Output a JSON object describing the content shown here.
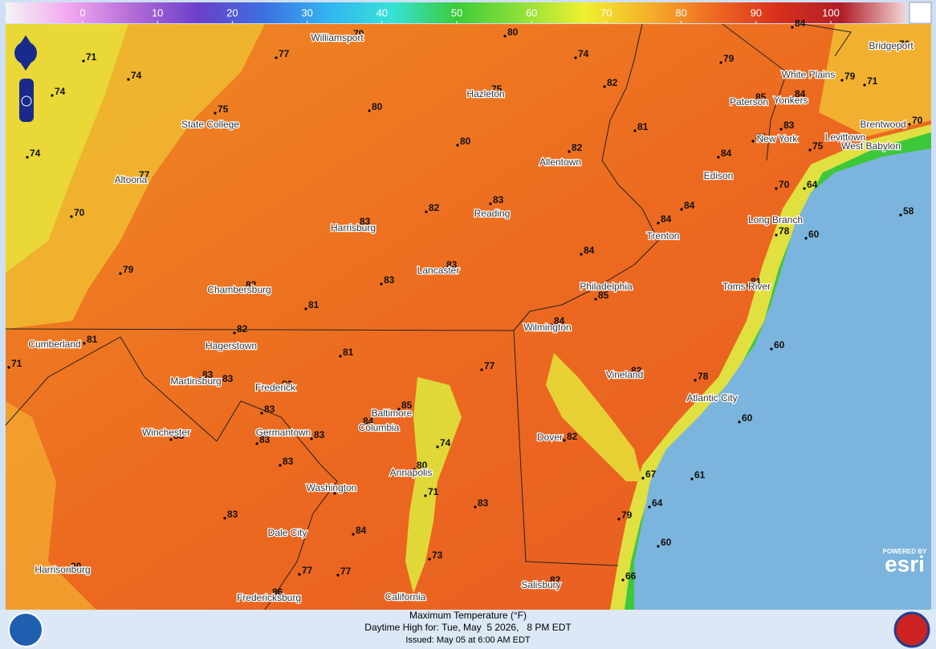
{
  "colorbar": {
    "ticks": [
      0,
      10,
      20,
      30,
      40,
      50,
      60,
      70,
      80,
      90,
      100
    ],
    "colors": [
      "#f4f4f4",
      "#f2a6f0",
      "#b26ad8",
      "#6b3fc9",
      "#3d6fe0",
      "#33b4f0",
      "#36e2d8",
      "#3ccc3a",
      "#8ee03a",
      "#f0f030",
      "#f5b02a",
      "#f06a22",
      "#d8301c",
      "#b01e28",
      "#f2d8d8"
    ]
  },
  "temperatures": [
    79,
    80,
    84,
    76,
    71,
    77,
    74,
    79,
    74,
    82,
    85,
    84,
    79,
    71,
    74,
    75,
    75,
    80,
    81,
    85,
    83,
    70,
    74,
    80,
    82,
    84,
    75,
    77,
    83,
    82,
    84,
    84,
    70,
    64,
    58,
    70,
    83,
    78,
    60,
    79,
    83,
    84,
    82,
    83,
    81,
    81,
    85,
    82,
    84,
    81,
    71,
    81,
    60,
    77,
    83,
    83,
    83,
    82,
    78,
    85,
    83,
    84,
    60,
    83,
    83,
    82,
    74,
    83,
    83,
    80,
    85,
    71,
    67,
    61,
    83,
    64,
    79,
    83,
    84,
    60,
    73,
    80,
    77,
    77,
    66,
    82,
    86
  ],
  "cities": [
    "Williamsport",
    "Hazleton",
    "State College",
    "Allentown",
    "Altoona",
    "Reading",
    "Harrisburg",
    "Lancaster",
    "Chambersburg",
    "Philadelphia",
    "Trenton",
    "Edison",
    "New York",
    "Paterson",
    "Yonkers",
    "White Plains",
    "Bridgeport",
    "Brentwood",
    "Levittown",
    "West Babylon",
    "Long Branch",
    "Toms River",
    "Wilmington",
    "Vineland",
    "Atlantic City",
    "Dover",
    "Salisbury",
    "Cumberland",
    "Hagerstown",
    "Martinsburg",
    "Frederick",
    "Baltimore",
    "Columbia",
    "Germantown",
    "Winchester",
    "Washington",
    "Annapolis",
    "Dale City",
    "Harrisonburg",
    "Fredericksburg",
    "California"
  ],
  "footer": {
    "title": "Maximum Temperature (°F)",
    "valid": "Daytime High for: Tue, May  5 2026,   8 PM EDT",
    "issued": "Issued: May 05 at 6:00 AM EDT"
  },
  "attribution": {
    "powered": "POWERED BY",
    "brand": "esri"
  }
}
